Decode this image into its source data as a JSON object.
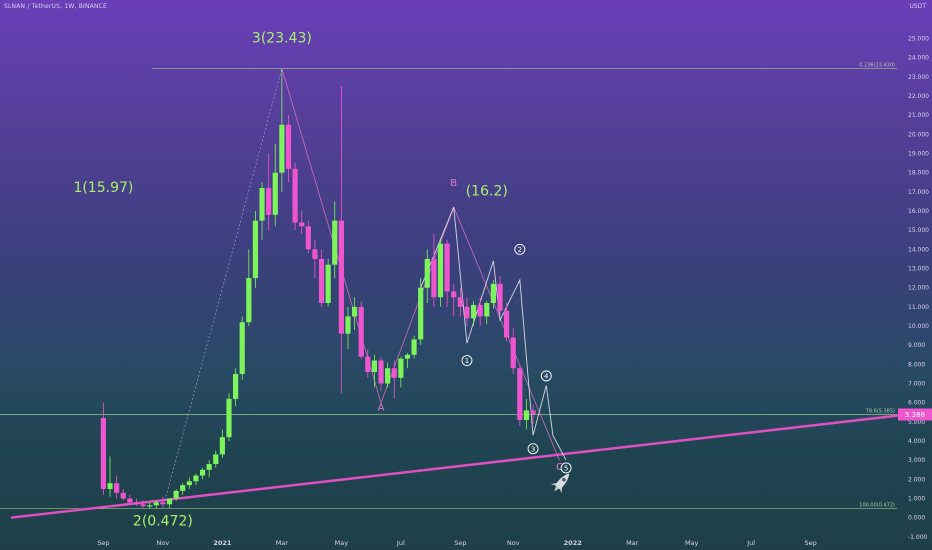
{
  "header": {
    "symbol_line": "SLNAN / TetherUS, 1W, BINANCE",
    "unit": "USDT"
  },
  "colors": {
    "bull": "#7cf45a",
    "bear": "#f055d0",
    "trendline": "#e050c0",
    "hline": "#b6e09a",
    "wave_label": "#a9f06a",
    "abc_label": "#e07ad0",
    "white_line": "#e8e8f0",
    "pink_line": "#d86fc2"
  },
  "chart_data": {
    "type": "candlestick",
    "ylim": [
      -1.0,
      25.0
    ],
    "y_ticks": [
      "-1.000",
      "0.000",
      "1.000",
      "2.000",
      "3.000",
      "4.000",
      "5.000",
      "6.000",
      "7.000",
      "8.000",
      "9.000",
      "10.000",
      "11.000",
      "12.000",
      "13.000",
      "14.000",
      "15.000",
      "16.000",
      "17.000",
      "18.000",
      "19.000",
      "20.000",
      "21.000",
      "22.000",
      "23.000",
      "24.000",
      "25.000"
    ],
    "x_ticks": [
      {
        "label": "Sep",
        "week": 0
      },
      {
        "label": "Nov",
        "week": 9
      },
      {
        "label": "2021",
        "week": 18
      },
      {
        "label": "Mar",
        "week": 27
      },
      {
        "label": "May",
        "week": 36
      },
      {
        "label": "Jul",
        "week": 45
      },
      {
        "label": "Sep",
        "week": 54
      },
      {
        "label": "Nov",
        "week": 62
      },
      {
        "label": "2022",
        "week": 71
      },
      {
        "label": "Mar",
        "week": 80
      },
      {
        "label": "May",
        "week": 89
      },
      {
        "label": "Jul",
        "week": 98
      },
      {
        "label": "Sep",
        "week": 107
      }
    ],
    "candles": [
      [
        0,
        5.2,
        6.0,
        1.2,
        1.5
      ],
      [
        1,
        1.5,
        3.2,
        1.1,
        1.8
      ],
      [
        2,
        1.8,
        2.2,
        1.0,
        1.3
      ],
      [
        3,
        1.3,
        1.5,
        0.9,
        1.0
      ],
      [
        4,
        1.0,
        1.2,
        0.7,
        0.8
      ],
      [
        5,
        0.8,
        1.0,
        0.6,
        0.7
      ],
      [
        6,
        0.7,
        0.9,
        0.5,
        0.6
      ],
      [
        7,
        0.6,
        0.8,
        0.5,
        0.65
      ],
      [
        8,
        0.65,
        0.9,
        0.5,
        0.8
      ],
      [
        9,
        0.8,
        1.1,
        0.6,
        0.7
      ],
      [
        10,
        0.7,
        1.0,
        0.5,
        1.0
      ],
      [
        11,
        1.0,
        1.5,
        0.9,
        1.4
      ],
      [
        12,
        1.4,
        1.8,
        1.2,
        1.7
      ],
      [
        13,
        1.7,
        2.1,
        1.5,
        1.9
      ],
      [
        14,
        1.9,
        2.3,
        1.7,
        2.2
      ],
      [
        15,
        2.2,
        2.6,
        2.0,
        2.5
      ],
      [
        16,
        2.5,
        3.0,
        2.1,
        2.8
      ],
      [
        17,
        2.8,
        3.5,
        2.6,
        3.3
      ],
      [
        18,
        3.3,
        4.6,
        3.1,
        4.2
      ],
      [
        19,
        4.2,
        6.5,
        4.0,
        6.2
      ],
      [
        20,
        6.2,
        7.8,
        5.8,
        7.5
      ],
      [
        21,
        7.5,
        10.5,
        7.2,
        10.2
      ],
      [
        22,
        10.2,
        14.0,
        10.0,
        12.5
      ],
      [
        23,
        12.5,
        16.0,
        12.0,
        15.5
      ],
      [
        24,
        15.5,
        17.5,
        14.5,
        17.2
      ],
      [
        25,
        17.2,
        19.0,
        15.0,
        15.8
      ],
      [
        26,
        15.8,
        19.5,
        15.2,
        18.0
      ],
      [
        27,
        18.0,
        23.4,
        17.0,
        20.5
      ],
      [
        28,
        20.5,
        21.0,
        17.5,
        18.2
      ],
      [
        29,
        18.2,
        18.5,
        15.0,
        15.4
      ],
      [
        30,
        15.4,
        16.0,
        14.8,
        15.2
      ],
      [
        31,
        15.2,
        15.5,
        13.8,
        14.0
      ],
      [
        32,
        14.0,
        14.5,
        12.5,
        13.5
      ],
      [
        33,
        13.5,
        14.0,
        11.0,
        11.2
      ],
      [
        34,
        11.2,
        13.5,
        11.0,
        13.2
      ],
      [
        35,
        13.2,
        16.5,
        12.5,
        15.5
      ],
      [
        36,
        15.5,
        22.5,
        6.5,
        9.6
      ],
      [
        37,
        9.6,
        11.0,
        8.8,
        10.5
      ],
      [
        38,
        10.5,
        11.5,
        9.8,
        11.0
      ],
      [
        39,
        11.0,
        11.3,
        8.3,
        8.4
      ],
      [
        40,
        8.4,
        8.8,
        7.3,
        7.6
      ],
      [
        41,
        7.6,
        8.5,
        6.8,
        8.2
      ],
      [
        42,
        8.2,
        8.4,
        6.6,
        7.0
      ],
      [
        43,
        7.0,
        8.1,
        6.8,
        7.8
      ],
      [
        44,
        7.8,
        8.2,
        6.2,
        7.3
      ],
      [
        45,
        7.3,
        8.4,
        6.8,
        8.3
      ],
      [
        46,
        8.3,
        8.6,
        7.8,
        8.5
      ],
      [
        47,
        8.5,
        9.5,
        8.3,
        9.3
      ],
      [
        48,
        9.3,
        12.5,
        9.0,
        12.0
      ],
      [
        49,
        12.0,
        14.0,
        11.2,
        13.5
      ],
      [
        50,
        13.5,
        14.8,
        11.0,
        11.5
      ],
      [
        51,
        11.5,
        14.6,
        11.0,
        14.3
      ],
      [
        52,
        14.3,
        14.5,
        11.0,
        11.8
      ],
      [
        53,
        11.8,
        12.2,
        10.5,
        11.5
      ],
      [
        54,
        11.5,
        12.0,
        10.5,
        11.0
      ],
      [
        55,
        11.0,
        11.5,
        10.0,
        10.4
      ],
      [
        56,
        10.4,
        11.3,
        10.0,
        11.1
      ],
      [
        57,
        11.1,
        11.5,
        10.0,
        10.5
      ],
      [
        58,
        10.5,
        11.3,
        10.1,
        11.2
      ],
      [
        59,
        11.2,
        12.4,
        10.9,
        12.2
      ],
      [
        60,
        12.2,
        12.6,
        10.5,
        10.8
      ],
      [
        61,
        10.8,
        11.2,
        9.2,
        9.4
      ],
      [
        62,
        9.4,
        9.9,
        7.5,
        7.8
      ],
      [
        63,
        7.8,
        8.0,
        4.8,
        5.1
      ],
      [
        64,
        5.1,
        6.2,
        4.6,
        5.6
      ],
      [
        65,
        5.6,
        5.9,
        4.9,
        5.4
      ]
    ],
    "annotations": [
      {
        "text": "1(15.97)",
        "kind": "wave",
        "week": 0,
        "price": 17.0
      },
      {
        "text": "2(0.472)",
        "kind": "wave",
        "week": 9,
        "price": -0.4
      },
      {
        "text": "3(23.43)",
        "kind": "wave",
        "week": 27,
        "price": 24.8
      },
      {
        "text": "B",
        "kind": "abc",
        "week": 53,
        "price": 17.3
      },
      {
        "text": "(16.2)",
        "kind": "wave",
        "week": 58,
        "price": 16.8
      },
      {
        "text": "A",
        "kind": "abc",
        "week": 42,
        "price": 5.6
      },
      {
        "text": "C",
        "kind": "abc",
        "week": 69,
        "price": 2.5
      }
    ],
    "circle_labels": [
      {
        "text": "1",
        "week": 55,
        "price": 8.2
      },
      {
        "text": "2",
        "week": 63,
        "price": 14.0
      },
      {
        "text": "3",
        "week": 65,
        "price": 3.6
      },
      {
        "text": "4",
        "week": 67,
        "price": 7.4
      },
      {
        "text": "5",
        "week": 70,
        "price": 2.6
      }
    ],
    "hlines": [
      {
        "price": 23.43,
        "label": "0.236(23.430)"
      },
      {
        "price": 5.385,
        "label": "78.6(5.385)"
      },
      {
        "price": 0.472,
        "label": "100.00(0.472)"
      }
    ],
    "current_price": "5.386",
    "trendline": {
      "from": [
        -14,
        0.0
      ],
      "to": [
        122,
        5.4
      ]
    }
  }
}
